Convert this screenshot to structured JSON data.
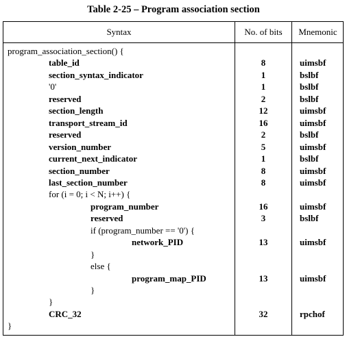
{
  "caption": "Table 2-25 – Program association section",
  "headers": {
    "syntax": "Syntax",
    "bits": "No. of bits",
    "mnemonic": "Mnemonic"
  },
  "rows": [
    {
      "syntax": "program_association_section() {",
      "level": 0,
      "bold": false,
      "bits": "",
      "mnemonic": ""
    },
    {
      "syntax": "table_id",
      "level": 1,
      "bold": true,
      "bits": "8",
      "mnemonic": "uimsbf"
    },
    {
      "syntax": "section_syntax_indicator",
      "level": 1,
      "bold": true,
      "bits": "1",
      "mnemonic": "bslbf"
    },
    {
      "syntax": "'0'",
      "level": 1,
      "bold": false,
      "bits": "1",
      "mnemonic": "bslbf"
    },
    {
      "syntax": "reserved",
      "level": 1,
      "bold": true,
      "bits": "2",
      "mnemonic": "bslbf"
    },
    {
      "syntax": "section_length",
      "level": 1,
      "bold": true,
      "bits": "12",
      "mnemonic": "uimsbf"
    },
    {
      "syntax": "transport_stream_id",
      "level": 1,
      "bold": true,
      "bits": "16",
      "mnemonic": "uimsbf"
    },
    {
      "syntax": "reserved",
      "level": 1,
      "bold": true,
      "bits": "2",
      "mnemonic": "bslbf"
    },
    {
      "syntax": "version_number",
      "level": 1,
      "bold": true,
      "bits": "5",
      "mnemonic": "uimsbf"
    },
    {
      "syntax": "current_next_indicator",
      "level": 1,
      "bold": true,
      "bits": "1",
      "mnemonic": "bslbf"
    },
    {
      "syntax": "section_number",
      "level": 1,
      "bold": true,
      "bits": "8",
      "mnemonic": "uimsbf"
    },
    {
      "syntax": "last_section_number",
      "level": 1,
      "bold": true,
      "bits": "8",
      "mnemonic": "uimsbf"
    },
    {
      "syntax": "for (i = 0; i < N; i++) {",
      "level": 1,
      "bold": false,
      "bits": "",
      "mnemonic": ""
    },
    {
      "syntax": "program_number",
      "level": 2,
      "bold": true,
      "bits": "16",
      "mnemonic": "uimsbf"
    },
    {
      "syntax": "reserved",
      "level": 2,
      "bold": true,
      "bits": "3",
      "mnemonic": "bslbf"
    },
    {
      "syntax": "if (program_number == '0') {",
      "level": 2,
      "bold": false,
      "bits": "",
      "mnemonic": ""
    },
    {
      "syntax": "network_PID",
      "level": 3,
      "bold": true,
      "bits": "13",
      "mnemonic": "uimsbf"
    },
    {
      "syntax": "}",
      "level": 2,
      "bold": false,
      "bits": "",
      "mnemonic": ""
    },
    {
      "syntax": "else {",
      "level": 2,
      "bold": false,
      "bits": "",
      "mnemonic": ""
    },
    {
      "syntax": "program_map_PID",
      "level": 3,
      "bold": true,
      "bits": "13",
      "mnemonic": "uimsbf"
    },
    {
      "syntax": "}",
      "level": 2,
      "bold": false,
      "bits": "",
      "mnemonic": ""
    },
    {
      "syntax": "}",
      "level": 1,
      "bold": false,
      "bits": "",
      "mnemonic": ""
    },
    {
      "syntax": "CRC_32",
      "level": 1,
      "bold": true,
      "bits": "32",
      "mnemonic": "rpchof"
    },
    {
      "syntax": "}",
      "level": 0,
      "bold": false,
      "bits": "",
      "mnemonic": ""
    }
  ]
}
